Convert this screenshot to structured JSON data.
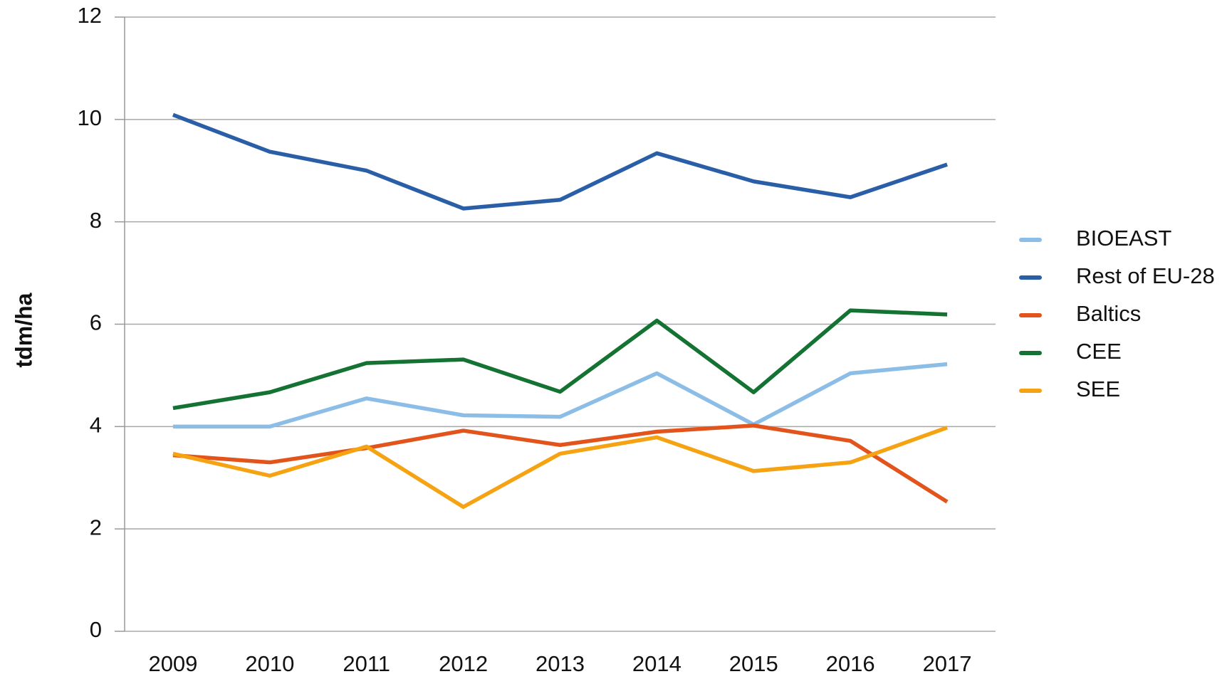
{
  "chart_data": {
    "type": "line",
    "ylabel": "tdm/ha",
    "categories": [
      "2009",
      "2010",
      "2011",
      "2012",
      "2013",
      "2014",
      "2015",
      "2016",
      "2017"
    ],
    "series": [
      {
        "name": "BIOEAST",
        "color": "#8bbde6",
        "values": [
          4.0,
          4.0,
          4.55,
          4.22,
          4.19,
          5.04,
          4.04,
          5.04,
          5.22
        ]
      },
      {
        "name": "Rest of EU-28",
        "color": "#2a5fa8",
        "values": [
          10.09,
          9.37,
          9.0,
          8.26,
          8.43,
          9.34,
          8.79,
          8.48,
          9.12
        ]
      },
      {
        "name": "Baltics",
        "color": "#e2541b",
        "values": [
          3.44,
          3.3,
          3.58,
          3.92,
          3.64,
          3.9,
          4.02,
          3.72,
          2.53
        ]
      },
      {
        "name": "CEE",
        "color": "#147232",
        "values": [
          4.36,
          4.67,
          5.24,
          5.31,
          4.68,
          6.07,
          4.67,
          6.27,
          6.19
        ]
      },
      {
        "name": "SEE",
        "color": "#f5a312",
        "values": [
          3.47,
          3.04,
          3.61,
          2.43,
          3.47,
          3.79,
          3.13,
          3.3,
          3.98
        ]
      }
    ],
    "ylim": [
      0,
      12
    ],
    "yticks": [
      0,
      2,
      4,
      6,
      8,
      10,
      12
    ],
    "grid": true,
    "legend": "right"
  }
}
